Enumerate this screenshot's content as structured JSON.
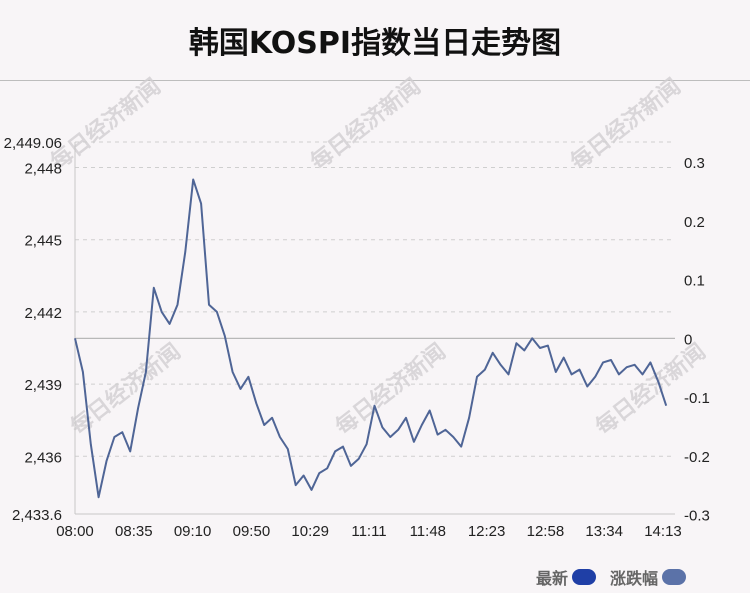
{
  "title": "韩国KOSPI指数当日走势图",
  "watermark_text": "每日经济新闻",
  "legend": {
    "latest_label": "最新",
    "change_label": "涨跌幅",
    "latest_color": "#1f3fa6",
    "change_color": "#5b72a8"
  },
  "colors": {
    "line": "#4f6596",
    "grid": "#cfcfcf",
    "zero_line": "#b8b8b8"
  },
  "chart_data": {
    "type": "line",
    "title": "韩国KOSPI指数当日走势图",
    "x_tick_labels": [
      "08:00",
      "08:35",
      "09:10",
      "09:50",
      "10:29",
      "11:11",
      "11:48",
      "12:23",
      "12:58",
      "13:34",
      "14:13"
    ],
    "y_left_tick_labels": [
      "2,449.06",
      "2,448",
      "2,445",
      "2,442",
      "2,439",
      "2,436",
      "2,433.6"
    ],
    "y_left_ticks": [
      2449.06,
      2448,
      2445,
      2442,
      2439,
      2436,
      2433.6
    ],
    "y_left_range": [
      2433.6,
      2449.06
    ],
    "y_right_tick_labels": [
      "0.3",
      "0.2",
      "0.1",
      "0",
      "-0.1",
      "-0.2",
      "-0.3"
    ],
    "y_right_ticks": [
      0.3,
      0.2,
      0.1,
      0,
      -0.1,
      -0.2,
      -0.3
    ],
    "reference_value": 2440.9,
    "grid": true,
    "legend_position": "bottom-right",
    "series": [
      {
        "name": "最新",
        "x": [
          "08:00",
          "08:05",
          "08:10",
          "08:15",
          "08:20",
          "08:25",
          "08:30",
          "08:35",
          "08:40",
          "08:45",
          "08:50",
          "08:55",
          "09:00",
          "09:05",
          "09:10",
          "09:15",
          "09:20",
          "09:25",
          "09:30",
          "09:35",
          "09:40",
          "09:45",
          "09:50",
          "09:55",
          "10:00",
          "10:05",
          "10:10",
          "10:15",
          "10:20",
          "10:25",
          "10:30",
          "10:35",
          "10:40",
          "10:45",
          "10:50",
          "10:55",
          "11:00",
          "11:05",
          "11:10",
          "11:15",
          "11:20",
          "11:25",
          "11:30",
          "11:35",
          "11:40",
          "11:45",
          "11:50",
          "11:55",
          "12:00",
          "12:05",
          "12:10",
          "12:15",
          "12:20",
          "12:25",
          "12:30",
          "12:35",
          "12:40",
          "12:45",
          "12:50",
          "12:55",
          "13:00",
          "13:05",
          "13:10",
          "13:15",
          "13:20",
          "13:25",
          "13:30",
          "13:35",
          "13:40",
          "13:45",
          "13:50",
          "13:55",
          "14:00",
          "14:05",
          "14:10",
          "14:15"
        ],
        "values": [
          2440.9,
          2439.5,
          2436.5,
          2434.3,
          2435.8,
          2436.8,
          2437.0,
          2436.2,
          2438.0,
          2439.5,
          2443.0,
          2442.0,
          2441.5,
          2442.3,
          2444.5,
          2447.5,
          2446.5,
          2442.3,
          2442.0,
          2441.0,
          2439.5,
          2438.8,
          2439.3,
          2438.2,
          2437.3,
          2437.6,
          2436.8,
          2436.3,
          2434.8,
          2435.2,
          2434.6,
          2435.3,
          2435.5,
          2436.2,
          2436.4,
          2435.6,
          2435.9,
          2436.5,
          2438.1,
          2437.2,
          2436.8,
          2437.1,
          2437.6,
          2436.6,
          2437.3,
          2437.9,
          2436.9,
          2437.1,
          2436.8,
          2436.4,
          2437.6,
          2439.3,
          2439.6,
          2440.3,
          2439.8,
          2439.4,
          2440.7,
          2440.4,
          2440.9,
          2440.5,
          2440.6,
          2439.5,
          2440.1,
          2439.4,
          2439.6,
          2438.9,
          2439.3,
          2439.9,
          2440.0,
          2439.4,
          2439.7,
          2439.8,
          2439.4,
          2439.9,
          2439.1,
          2438.1
        ]
      }
    ]
  }
}
